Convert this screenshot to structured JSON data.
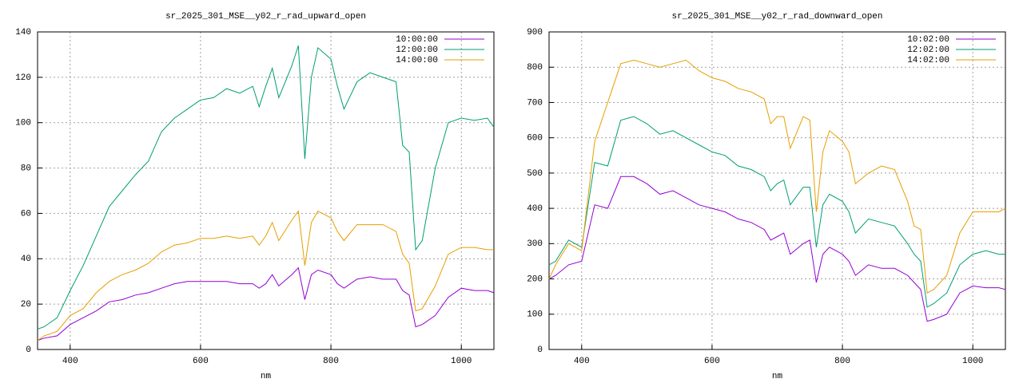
{
  "chart_data": [
    {
      "type": "line",
      "title": "sr_2025_301_MSE__y02_r_rad_upward_open",
      "x_label": "nm",
      "x": [
        350,
        360,
        380,
        400,
        420,
        440,
        460,
        480,
        500,
        520,
        540,
        560,
        580,
        600,
        620,
        640,
        660,
        680,
        690,
        700,
        710,
        720,
        740,
        750,
        760,
        770,
        780,
        800,
        810,
        820,
        840,
        860,
        880,
        900,
        910,
        920,
        930,
        940,
        960,
        980,
        1000,
        1020,
        1040,
        1050
      ],
      "xlim": [
        350,
        1050
      ],
      "xticks": [
        400,
        600,
        800,
        1000
      ],
      "ylim": [
        0,
        140
      ],
      "yticks": [
        0,
        20,
        40,
        60,
        80,
        100,
        120,
        140
      ],
      "grid": true,
      "legend": "top-right",
      "series": [
        {
          "name": "10:00:00",
          "color": "#9400d3",
          "values": [
            4,
            5,
            6,
            11,
            14,
            17,
            21,
            22,
            24,
            25,
            27,
            29,
            30,
            30,
            30,
            30,
            29,
            29,
            27,
            29,
            33,
            28,
            33,
            36,
            22,
            33,
            35,
            33,
            29,
            27,
            31,
            32,
            31,
            31,
            26,
            24,
            10,
            11,
            15,
            23,
            27,
            26,
            26,
            25
          ]
        },
        {
          "name": "12:00:00",
          "color": "#009e73",
          "values": [
            9,
            10,
            14,
            26,
            37,
            50,
            63,
            70,
            77,
            83,
            96,
            102,
            106,
            110,
            111,
            115,
            113,
            116,
            107,
            116,
            124,
            111,
            125,
            134,
            84,
            120,
            133,
            128,
            116,
            106,
            118,
            122,
            120,
            118,
            90,
            87,
            44,
            48,
            80,
            100,
            102,
            101,
            102,
            98
          ]
        },
        {
          "name": "14:00:00",
          "color": "#e69f00",
          "values": [
            4,
            6,
            8,
            15,
            18,
            25,
            30,
            33,
            35,
            38,
            43,
            46,
            47,
            49,
            49,
            50,
            49,
            50,
            46,
            50,
            56,
            48,
            57,
            61,
            37,
            56,
            61,
            58,
            52,
            48,
            55,
            55,
            55,
            52,
            42,
            38,
            17,
            18,
            28,
            42,
            45,
            45,
            44,
            44
          ]
        }
      ]
    },
    {
      "type": "line",
      "title": "sr_2025_301_MSE__y02_r_rad_downward_open",
      "x_label": "nm",
      "x": [
        350,
        360,
        380,
        400,
        420,
        440,
        460,
        480,
        500,
        520,
        540,
        560,
        580,
        600,
        620,
        640,
        660,
        680,
        690,
        700,
        710,
        720,
        740,
        750,
        760,
        770,
        780,
        800,
        810,
        820,
        840,
        860,
        880,
        900,
        910,
        920,
        930,
        940,
        960,
        980,
        1000,
        1020,
        1040,
        1050
      ],
      "xlim": [
        350,
        1050
      ],
      "xticks": [
        400,
        600,
        800,
        1000
      ],
      "ylim": [
        0,
        900
      ],
      "yticks": [
        0,
        100,
        200,
        300,
        400,
        500,
        600,
        700,
        800,
        900
      ],
      "grid": true,
      "legend": "top-right",
      "series": [
        {
          "name": "10:02:00",
          "color": "#9400d3",
          "values": [
            200,
            210,
            240,
            250,
            410,
            400,
            490,
            490,
            470,
            440,
            450,
            430,
            410,
            400,
            390,
            370,
            360,
            340,
            310,
            320,
            330,
            270,
            300,
            310,
            190,
            270,
            290,
            270,
            250,
            210,
            240,
            230,
            230,
            210,
            190,
            170,
            80,
            85,
            100,
            160,
            180,
            175,
            175,
            170
          ]
        },
        {
          "name": "12:02:00",
          "color": "#009e73",
          "values": [
            240,
            250,
            310,
            290,
            530,
            520,
            650,
            660,
            640,
            610,
            620,
            600,
            580,
            560,
            550,
            520,
            510,
            490,
            450,
            470,
            480,
            410,
            460,
            460,
            290,
            410,
            440,
            420,
            390,
            330,
            370,
            360,
            350,
            300,
            270,
            250,
            120,
            130,
            160,
            240,
            270,
            280,
            270,
            270
          ]
        },
        {
          "name": "14:02:00",
          "color": "#e69f00",
          "values": [
            200,
            240,
            300,
            280,
            590,
            700,
            810,
            820,
            810,
            800,
            810,
            820,
            790,
            770,
            760,
            740,
            730,
            710,
            640,
            660,
            660,
            570,
            660,
            650,
            390,
            560,
            620,
            590,
            560,
            470,
            500,
            520,
            510,
            420,
            350,
            340,
            160,
            170,
            210,
            330,
            390,
            390,
            390,
            400
          ]
        }
      ]
    }
  ]
}
